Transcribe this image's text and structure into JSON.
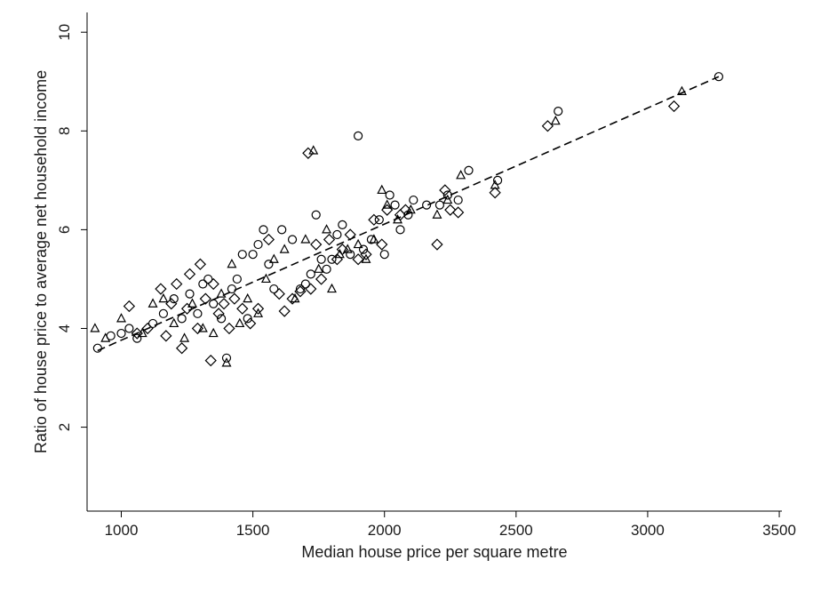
{
  "chart_data": {
    "type": "scatter",
    "title": "",
    "xlabel": "Median house price per square metre",
    "ylabel": "Ratio of house price to average net household income",
    "xlim": [
      870,
      3510
    ],
    "ylim": [
      0.3,
      10.4
    ],
    "xticks": [
      1000,
      1500,
      2000,
      2500,
      3000,
      3500
    ],
    "yticks": [
      2,
      4,
      6,
      8,
      10
    ],
    "grid": false,
    "legend": "none",
    "trendline": {
      "style": "dashed",
      "x": [
        910,
        3270
      ],
      "y": [
        3.55,
        9.1
      ]
    },
    "series": [
      {
        "marker": "circle",
        "points": [
          [
            910,
            3.6
          ],
          [
            960,
            3.85
          ],
          [
            1000,
            3.9
          ],
          [
            1030,
            4.0
          ],
          [
            1060,
            3.8
          ],
          [
            1120,
            4.1
          ],
          [
            1160,
            4.3
          ],
          [
            1200,
            4.6
          ],
          [
            1230,
            4.2
          ],
          [
            1260,
            4.7
          ],
          [
            1290,
            4.3
          ],
          [
            1310,
            4.9
          ],
          [
            1330,
            5.0
          ],
          [
            1350,
            4.5
          ],
          [
            1380,
            4.2
          ],
          [
            1400,
            3.4
          ],
          [
            1420,
            4.8
          ],
          [
            1440,
            5.0
          ],
          [
            1460,
            5.5
          ],
          [
            1480,
            4.2
          ],
          [
            1500,
            5.5
          ],
          [
            1520,
            5.7
          ],
          [
            1540,
            6.0
          ],
          [
            1560,
            5.3
          ],
          [
            1580,
            4.8
          ],
          [
            1610,
            6.0
          ],
          [
            1650,
            5.8
          ],
          [
            1680,
            4.8
          ],
          [
            1700,
            4.9
          ],
          [
            1720,
            5.1
          ],
          [
            1740,
            6.3
          ],
          [
            1760,
            5.4
          ],
          [
            1780,
            5.2
          ],
          [
            1800,
            5.4
          ],
          [
            1820,
            5.9
          ],
          [
            1840,
            6.1
          ],
          [
            1870,
            5.5
          ],
          [
            1900,
            7.9
          ],
          [
            1920,
            5.6
          ],
          [
            1950,
            5.8
          ],
          [
            1980,
            6.2
          ],
          [
            2000,
            5.5
          ],
          [
            2020,
            6.7
          ],
          [
            2040,
            6.5
          ],
          [
            2060,
            6.0
          ],
          [
            2090,
            6.3
          ],
          [
            2110,
            6.6
          ],
          [
            2160,
            6.5
          ],
          [
            2210,
            6.5
          ],
          [
            2240,
            6.7
          ],
          [
            2280,
            6.6
          ],
          [
            2320,
            7.2
          ],
          [
            2430,
            7.0
          ],
          [
            2660,
            8.4
          ],
          [
            3270,
            9.1
          ]
        ]
      },
      {
        "marker": "triangle",
        "points": [
          [
            900,
            4.0
          ],
          [
            940,
            3.8
          ],
          [
            1000,
            4.2
          ],
          [
            1080,
            3.9
          ],
          [
            1120,
            4.5
          ],
          [
            1160,
            4.6
          ],
          [
            1200,
            4.1
          ],
          [
            1240,
            3.8
          ],
          [
            1270,
            4.5
          ],
          [
            1310,
            4.0
          ],
          [
            1350,
            3.9
          ],
          [
            1380,
            4.7
          ],
          [
            1400,
            3.3
          ],
          [
            1420,
            5.3
          ],
          [
            1450,
            4.1
          ],
          [
            1480,
            4.6
          ],
          [
            1520,
            4.3
          ],
          [
            1550,
            5.0
          ],
          [
            1580,
            5.4
          ],
          [
            1620,
            5.6
          ],
          [
            1660,
            4.6
          ],
          [
            1700,
            5.8
          ],
          [
            1730,
            7.6
          ],
          [
            1750,
            5.2
          ],
          [
            1780,
            6.0
          ],
          [
            1800,
            4.8
          ],
          [
            1830,
            5.5
          ],
          [
            1860,
            5.6
          ],
          [
            1900,
            5.7
          ],
          [
            1930,
            5.4
          ],
          [
            1960,
            5.8
          ],
          [
            1990,
            6.8
          ],
          [
            2010,
            6.5
          ],
          [
            2050,
            6.2
          ],
          [
            2100,
            6.4
          ],
          [
            2200,
            6.3
          ],
          [
            2240,
            6.6
          ],
          [
            2290,
            7.1
          ],
          [
            2420,
            6.9
          ],
          [
            2650,
            8.2
          ],
          [
            3130,
            8.8
          ]
        ]
      },
      {
        "marker": "diamond",
        "points": [
          [
            1030,
            4.45
          ],
          [
            1060,
            3.9
          ],
          [
            1100,
            4.0
          ],
          [
            1150,
            4.8
          ],
          [
            1170,
            3.85
          ],
          [
            1190,
            4.5
          ],
          [
            1210,
            4.9
          ],
          [
            1230,
            3.6
          ],
          [
            1250,
            4.4
          ],
          [
            1260,
            5.1
          ],
          [
            1290,
            4.0
          ],
          [
            1300,
            5.3
          ],
          [
            1320,
            4.6
          ],
          [
            1340,
            3.35
          ],
          [
            1350,
            4.9
          ],
          [
            1370,
            4.3
          ],
          [
            1390,
            4.5
          ],
          [
            1410,
            4.0
          ],
          [
            1430,
            4.6
          ],
          [
            1460,
            4.4
          ],
          [
            1490,
            4.1
          ],
          [
            1520,
            4.4
          ],
          [
            1560,
            5.8
          ],
          [
            1600,
            4.7
          ],
          [
            1620,
            4.35
          ],
          [
            1650,
            4.6
          ],
          [
            1680,
            4.75
          ],
          [
            1710,
            7.55
          ],
          [
            1720,
            4.8
          ],
          [
            1740,
            5.7
          ],
          [
            1760,
            5.0
          ],
          [
            1790,
            5.8
          ],
          [
            1820,
            5.4
          ],
          [
            1840,
            5.6
          ],
          [
            1870,
            5.9
          ],
          [
            1900,
            5.4
          ],
          [
            1930,
            5.5
          ],
          [
            1960,
            6.2
          ],
          [
            1990,
            5.7
          ],
          [
            2010,
            6.4
          ],
          [
            2060,
            6.3
          ],
          [
            2080,
            6.4
          ],
          [
            2200,
            5.7
          ],
          [
            2230,
            6.8
          ],
          [
            2250,
            6.4
          ],
          [
            2280,
            6.35
          ],
          [
            2420,
            6.75
          ],
          [
            2620,
            8.1
          ],
          [
            3100,
            8.5
          ]
        ]
      }
    ]
  }
}
